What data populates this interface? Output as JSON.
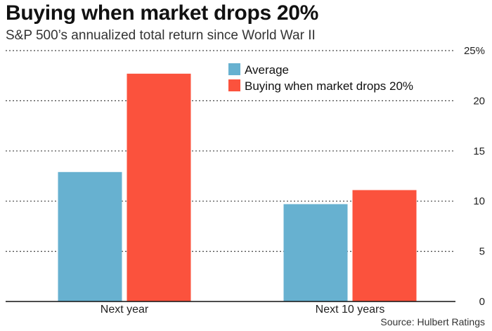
{
  "chart_data": {
    "type": "bar",
    "title": "Buying when market drops 20%",
    "subtitle": "S&P 500’s annualized total return since World War II",
    "categories": [
      "Next year",
      "Next 10 years"
    ],
    "series": [
      {
        "name": "Average",
        "color": "#67b1d0",
        "values": [
          12.9,
          9.7
        ]
      },
      {
        "name": "Buying when market drops 20%",
        "color": "#fb523d",
        "values": [
          22.7,
          11.1
        ]
      }
    ],
    "ylim": [
      0,
      25
    ],
    "yticks": [
      0,
      5,
      10,
      15,
      20,
      25
    ],
    "ytick_labels": [
      "0",
      "5",
      "10",
      "15",
      "20",
      "25%"
    ],
    "grid": true,
    "legend_position": "top-center",
    "source": "Source: Hulbert Ratings",
    "xlabel": "",
    "ylabel": ""
  }
}
